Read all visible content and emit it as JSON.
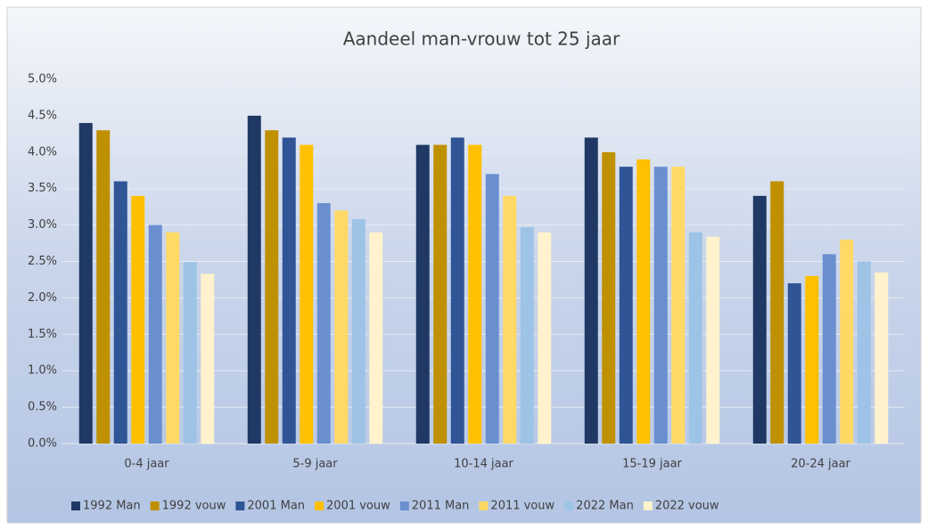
{
  "chart_data": {
    "type": "bar",
    "title": "Aandeel man-vrouw tot 25 jaar",
    "categories": [
      "0-4 jaar",
      "5-9 jaar",
      "10-14 jaar",
      "15-19 jaar",
      "20-24 jaar"
    ],
    "series": [
      {
        "name": "1992 Man",
        "color": "#1f3864",
        "values": [
          4.4,
          4.5,
          4.1,
          4.2,
          3.4
        ]
      },
      {
        "name": "1992 vouw",
        "color": "#bf9000",
        "values": [
          4.3,
          4.3,
          4.1,
          4.0,
          3.6
        ]
      },
      {
        "name": "2001 Man",
        "color": "#2f5597",
        "values": [
          3.6,
          4.2,
          4.2,
          3.8,
          2.2
        ]
      },
      {
        "name": "2001 vouw",
        "color": "#ffc000",
        "values": [
          3.4,
          4.1,
          4.1,
          3.9,
          2.3
        ]
      },
      {
        "name": "2011 Man",
        "color": "#6a8fd0",
        "values": [
          3.0,
          3.3,
          3.7,
          3.8,
          2.6
        ]
      },
      {
        "name": "2011 vouw",
        "color": "#ffd966",
        "values": [
          2.9,
          3.2,
          3.4,
          3.8,
          2.8
        ]
      },
      {
        "name": "2022 Man",
        "color": "#9dc3e6",
        "values": [
          2.49,
          3.08,
          2.97,
          2.9,
          2.5
        ]
      },
      {
        "name": "2022 vouw",
        "color": "#fff2cc",
        "values": [
          2.33,
          2.9,
          2.9,
          2.84,
          2.35
        ]
      }
    ],
    "ylim": [
      0,
      5
    ],
    "yticks": [
      {
        "value": 0,
        "label": "0.0%"
      },
      {
        "value": 0.5,
        "label": "0.5%"
      },
      {
        "value": 1,
        "label": "1.0%"
      },
      {
        "value": 1.5,
        "label": "1.5%"
      },
      {
        "value": 2,
        "label": "2.0%"
      },
      {
        "value": 2.5,
        "label": "2.5%"
      },
      {
        "value": 3,
        "label": "3.0%"
      },
      {
        "value": 3.5,
        "label": "3.5%"
      },
      {
        "value": 4,
        "label": "4.0%"
      },
      {
        "value": 4.5,
        "label": "4.5%"
      },
      {
        "value": 5,
        "label": "5.0%"
      }
    ],
    "grid": true,
    "legend": "bottom"
  }
}
